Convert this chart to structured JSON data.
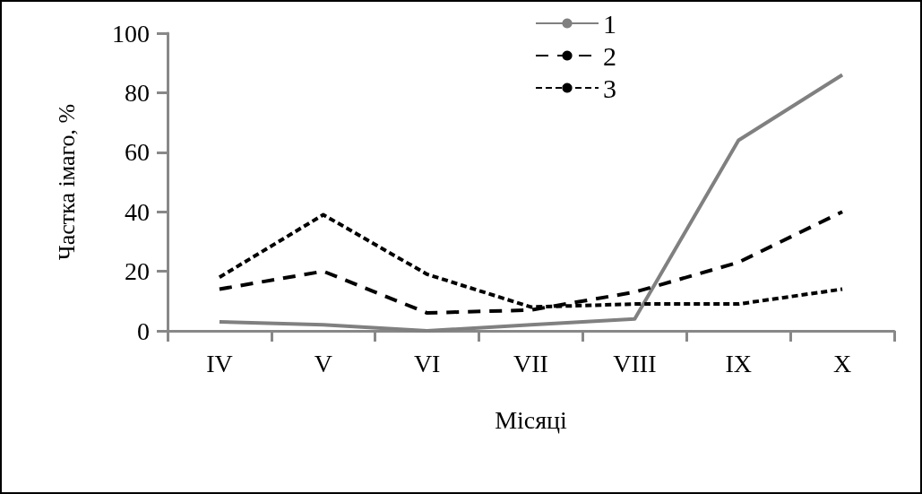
{
  "chart_data": {
    "type": "line",
    "xlabel": "Місяці",
    "ylabel": "Частка імаго, %",
    "categories": [
      "IV",
      "V",
      "VI",
      "VII",
      "VIII",
      "IX",
      "X"
    ],
    "series": [
      {
        "name": "1",
        "color": "#808080",
        "line_style": "solid",
        "values": [
          3,
          2,
          0,
          2,
          4,
          64,
          86
        ]
      },
      {
        "name": "2",
        "color": "#000000",
        "line_style": "dashed",
        "values": [
          14,
          20,
          6,
          7,
          13,
          23,
          40
        ]
      },
      {
        "name": "3",
        "color": "#000000",
        "line_style": "dotted",
        "values": [
          18,
          39,
          19,
          8,
          9,
          9,
          14
        ]
      }
    ],
    "ylim": [
      0,
      100
    ],
    "yticks": [
      0,
      20,
      40,
      60,
      80,
      100
    ],
    "grid": false,
    "legend": "top",
    "marker": "none"
  }
}
